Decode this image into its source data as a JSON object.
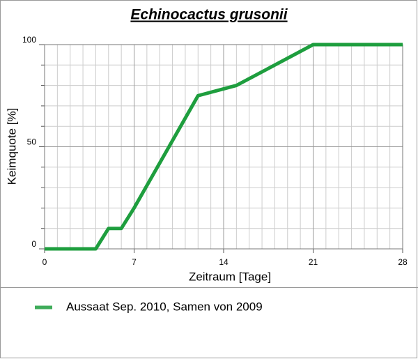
{
  "chart_data": {
    "type": "line",
    "title": "Echinocactus grusonii",
    "x_label": "Zeitraum [Tage]",
    "y_label": "Keimquote [%]",
    "xlim": [
      0,
      28
    ],
    "xticks": [
      0,
      7,
      14,
      21,
      28
    ],
    "xminorticks": [
      1,
      2,
      3,
      4,
      5,
      6,
      8,
      9,
      10,
      11,
      12,
      13,
      15,
      16,
      17,
      18,
      19,
      20,
      22,
      23,
      24,
      25,
      26,
      27
    ],
    "ylim": [
      0,
      100
    ],
    "yticks": [
      0,
      50,
      100
    ],
    "yminorticks": [
      10,
      20,
      30,
      40,
      60,
      70,
      80,
      90
    ],
    "grid": true,
    "series": [
      {
        "name": "Aussaat Sep. 2010, Samen von 2009",
        "color": "#1e9e3e",
        "x": [
          0,
          4,
          5,
          6,
          7,
          12,
          15,
          21,
          28
        ],
        "values": [
          0,
          0,
          10,
          10,
          20,
          75,
          80,
          100,
          100
        ]
      }
    ]
  }
}
